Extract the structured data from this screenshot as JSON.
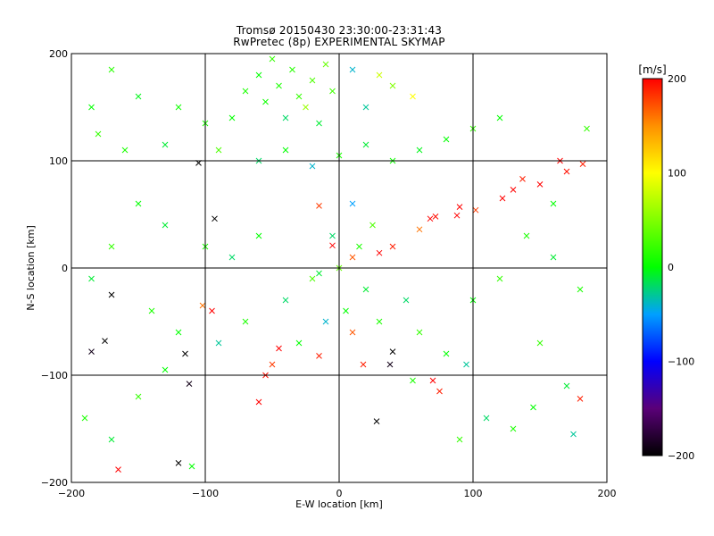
{
  "chart_data": {
    "type": "scatter",
    "title": "Tromsø 20150430 23:30:00-23:31:43",
    "subtitle": "RwPretec (8p) EXPERIMENTAL SKYMAP",
    "xlabel": "E-W location [km]",
    "ylabel": "N-S location [km]",
    "xlim": [
      -200,
      200
    ],
    "ylim": [
      -200,
      200
    ],
    "xticks": [
      -200,
      -100,
      0,
      100,
      200
    ],
    "yticks": [
      -200,
      -100,
      0,
      100,
      200
    ],
    "xtick_labels": [
      "−200",
      "−100",
      "0",
      "100",
      "200"
    ],
    "ytick_labels": [
      "−200",
      "−100",
      "0",
      "100",
      "200"
    ],
    "grid": true,
    "colorbar": {
      "label": "[m/s]",
      "range": [
        -200,
        200
      ],
      "ticks": [
        200,
        100,
        0,
        -100,
        -200
      ],
      "tick_labels": [
        "200",
        "100",
        "0",
        "−100",
        "−200"
      ],
      "stops": [
        {
          "v": -200,
          "color": "#000000"
        },
        {
          "v": -150,
          "color": "#5a0078"
        },
        {
          "v": -100,
          "color": "#0000ff"
        },
        {
          "v": -50,
          "color": "#00a0ff"
        },
        {
          "v": 0,
          "color": "#00ff00"
        },
        {
          "v": 50,
          "color": "#80ff00"
        },
        {
          "v": 100,
          "color": "#ffff00"
        },
        {
          "v": 150,
          "color": "#ff9000"
        },
        {
          "v": 200,
          "color": "#ff0000"
        }
      ]
    },
    "points": [
      {
        "x": -30,
        "y": 160,
        "v": 20
      },
      {
        "x": -45,
        "y": 170,
        "v": 10
      },
      {
        "x": -20,
        "y": 175,
        "v": 30
      },
      {
        "x": -55,
        "y": 155,
        "v": 5
      },
      {
        "x": -35,
        "y": 185,
        "v": 15
      },
      {
        "x": -10,
        "y": 190,
        "v": 40
      },
      {
        "x": -60,
        "y": 180,
        "v": 0
      },
      {
        "x": -25,
        "y": 150,
        "v": 60
      },
      {
        "x": -40,
        "y": 140,
        "v": -20
      },
      {
        "x": -5,
        "y": 165,
        "v": 25
      },
      {
        "x": 10,
        "y": 185,
        "v": -40
      },
      {
        "x": 30,
        "y": 180,
        "v": 80
      },
      {
        "x": -70,
        "y": 165,
        "v": 10
      },
      {
        "x": -50,
        "y": 195,
        "v": 20
      },
      {
        "x": -15,
        "y": 135,
        "v": -10
      },
      {
        "x": 20,
        "y": 150,
        "v": -30
      },
      {
        "x": 40,
        "y": 170,
        "v": 50
      },
      {
        "x": 55,
        "y": 160,
        "v": 100
      },
      {
        "x": -80,
        "y": 140,
        "v": 0
      },
      {
        "x": -100,
        "y": 135,
        "v": 10
      },
      {
        "x": -120,
        "y": 150,
        "v": 5
      },
      {
        "x": -150,
        "y": 160,
        "v": -5
      },
      {
        "x": -170,
        "y": 185,
        "v": 15
      },
      {
        "x": -185,
        "y": 150,
        "v": 0
      },
      {
        "x": -180,
        "y": 125,
        "v": 20
      },
      {
        "x": -160,
        "y": 110,
        "v": 10
      },
      {
        "x": -130,
        "y": 115,
        "v": -10
      },
      {
        "x": -105,
        "y": 98,
        "v": -200
      },
      {
        "x": -90,
        "y": 110,
        "v": 30
      },
      {
        "x": -60,
        "y": 100,
        "v": -20
      },
      {
        "x": -40,
        "y": 110,
        "v": 0
      },
      {
        "x": -20,
        "y": 95,
        "v": -40
      },
      {
        "x": 0,
        "y": 105,
        "v": 10
      },
      {
        "x": 20,
        "y": 115,
        "v": -10
      },
      {
        "x": 40,
        "y": 100,
        "v": 5
      },
      {
        "x": 60,
        "y": 110,
        "v": -5
      },
      {
        "x": 80,
        "y": 120,
        "v": 0
      },
      {
        "x": 100,
        "y": 130,
        "v": 20
      },
      {
        "x": 120,
        "y": 140,
        "v": 0
      },
      {
        "x": 165,
        "y": 100,
        "v": 200
      },
      {
        "x": 170,
        "y": 90,
        "v": 195
      },
      {
        "x": 182,
        "y": 97,
        "v": 190
      },
      {
        "x": 150,
        "y": 78,
        "v": 200
      },
      {
        "x": 137,
        "y": 83,
        "v": 190
      },
      {
        "x": 130,
        "y": 73,
        "v": 200
      },
      {
        "x": 122,
        "y": 65,
        "v": 200
      },
      {
        "x": 102,
        "y": 54,
        "v": 180
      },
      {
        "x": 90,
        "y": 57,
        "v": 200
      },
      {
        "x": 88,
        "y": 49,
        "v": 200
      },
      {
        "x": 72,
        "y": 48,
        "v": 195
      },
      {
        "x": 68,
        "y": 46,
        "v": 200
      },
      {
        "x": 60,
        "y": 36,
        "v": 160
      },
      {
        "x": 40,
        "y": 20,
        "v": 190
      },
      {
        "x": 30,
        "y": 14,
        "v": 200
      },
      {
        "x": 10,
        "y": 10,
        "v": 170
      },
      {
        "x": -5,
        "y": 21,
        "v": 200
      },
      {
        "x": -15,
        "y": 58,
        "v": 180
      },
      {
        "x": 185,
        "y": 130,
        "v": 20
      },
      {
        "x": 160,
        "y": 60,
        "v": 0
      },
      {
        "x": 140,
        "y": 30,
        "v": 10
      },
      {
        "x": 160,
        "y": 10,
        "v": -10
      },
      {
        "x": 120,
        "y": -10,
        "v": 20
      },
      {
        "x": 100,
        "y": -30,
        "v": 0
      },
      {
        "x": 180,
        "y": -20,
        "v": 10
      },
      {
        "x": 150,
        "y": -70,
        "v": 20
      },
      {
        "x": 170,
        "y": -110,
        "v": -10
      },
      {
        "x": 180,
        "y": -122,
        "v": 190
      },
      {
        "x": 175,
        "y": -155,
        "v": -30
      },
      {
        "x": 145,
        "y": -130,
        "v": 0
      },
      {
        "x": 130,
        "y": -150,
        "v": 10
      },
      {
        "x": 110,
        "y": -140,
        "v": -20
      },
      {
        "x": 90,
        "y": -160,
        "v": 20
      },
      {
        "x": 75,
        "y": -115,
        "v": 190
      },
      {
        "x": 70,
        "y": -105,
        "v": 200
      },
      {
        "x": 55,
        "y": -105,
        "v": 10
      },
      {
        "x": 40,
        "y": -78,
        "v": -200
      },
      {
        "x": 38,
        "y": -90,
        "v": -190
      },
      {
        "x": 28,
        "y": -143,
        "v": -200
      },
      {
        "x": 18,
        "y": -90,
        "v": 190
      },
      {
        "x": 10,
        "y": -60,
        "v": 170
      },
      {
        "x": 5,
        "y": -40,
        "v": 0
      },
      {
        "x": -15,
        "y": -82,
        "v": 190
      },
      {
        "x": -45,
        "y": -75,
        "v": 200
      },
      {
        "x": -50,
        "y": -90,
        "v": 180
      },
      {
        "x": -55,
        "y": -100,
        "v": 195
      },
      {
        "x": -60,
        "y": -125,
        "v": 200
      },
      {
        "x": -95,
        "y": -40,
        "v": 200
      },
      {
        "x": -102,
        "y": -35,
        "v": 160
      },
      {
        "x": -93,
        "y": 46,
        "v": -200
      },
      {
        "x": -170,
        "y": -25,
        "v": -200
      },
      {
        "x": -175,
        "y": -68,
        "v": -200
      },
      {
        "x": -185,
        "y": -78,
        "v": -190
      },
      {
        "x": -115,
        "y": -80,
        "v": -200
      },
      {
        "x": -112,
        "y": -108,
        "v": -190
      },
      {
        "x": -120,
        "y": -182,
        "v": -200
      },
      {
        "x": -165,
        "y": -188,
        "v": 200
      },
      {
        "x": -110,
        "y": -185,
        "v": 0
      },
      {
        "x": -190,
        "y": -140,
        "v": 10
      },
      {
        "x": -170,
        "y": -160,
        "v": -10
      },
      {
        "x": -150,
        "y": -120,
        "v": 20
      },
      {
        "x": -130,
        "y": -95,
        "v": 0
      },
      {
        "x": -90,
        "y": -70,
        "v": -30
      },
      {
        "x": -70,
        "y": -50,
        "v": 10
      },
      {
        "x": -40,
        "y": -30,
        "v": -20
      },
      {
        "x": -20,
        "y": -10,
        "v": 30
      },
      {
        "x": -10,
        "y": -50,
        "v": -40
      },
      {
        "x": -30,
        "y": -70,
        "v": 0
      },
      {
        "x": 20,
        "y": -20,
        "v": -10
      },
      {
        "x": 30,
        "y": -50,
        "v": 10
      },
      {
        "x": 50,
        "y": -30,
        "v": -20
      },
      {
        "x": 60,
        "y": -60,
        "v": 20
      },
      {
        "x": 80,
        "y": -80,
        "v": 0
      },
      {
        "x": 95,
        "y": -90,
        "v": -30
      },
      {
        "x": -60,
        "y": 30,
        "v": 0
      },
      {
        "x": -80,
        "y": 10,
        "v": -20
      },
      {
        "x": -100,
        "y": 20,
        "v": 10
      },
      {
        "x": -130,
        "y": 40,
        "v": -10
      },
      {
        "x": -150,
        "y": 60,
        "v": 0
      },
      {
        "x": -170,
        "y": 20,
        "v": 20
      },
      {
        "x": -185,
        "y": -10,
        "v": -10
      },
      {
        "x": -140,
        "y": -40,
        "v": 10
      },
      {
        "x": -120,
        "y": -60,
        "v": 0
      },
      {
        "x": 10,
        "y": 60,
        "v": -50
      },
      {
        "x": 25,
        "y": 40,
        "v": 30
      },
      {
        "x": -5,
        "y": 30,
        "v": -20
      },
      {
        "x": 0,
        "y": 0,
        "v": 40
      },
      {
        "x": -15,
        "y": -5,
        "v": -10
      },
      {
        "x": 15,
        "y": 20,
        "v": 10
      }
    ]
  }
}
